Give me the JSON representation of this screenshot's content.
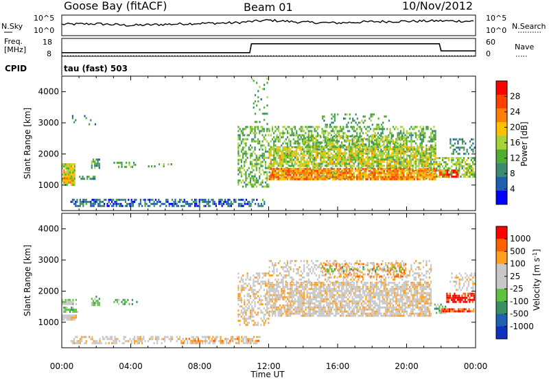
{
  "header": {
    "station": "Goose Bay (fitACF)",
    "beam": "Beam 01",
    "date": "10/Nov/2012"
  },
  "noise_panel": {
    "left_label": "N.Sky",
    "right_label": "N.Search",
    "left_ticks": [
      "10^5",
      "10^0"
    ],
    "right_ticks": [
      "10^5",
      "10^0"
    ]
  },
  "freq_panel": {
    "left_label_1": "Freq.",
    "left_label_2": "[MHz]",
    "right_label": "Nave",
    "left_ticks": [
      "18",
      "8"
    ],
    "right_ticks": [
      "60",
      "0"
    ]
  },
  "cpid": {
    "label": "CPID",
    "value": "tau (fast) 503"
  },
  "colors": {
    "power_scale": [
      "#0000ff",
      "#1e5fb0",
      "#3d8a72",
      "#4fae2f",
      "#a8d23a",
      "#ffc000",
      "#ff8000",
      "#ff4000",
      "#ff0000"
    ],
    "velocity_scale": [
      "#1030c0",
      "#2060b0",
      "#3a9060",
      "#60c040",
      "#c8c8c8",
      "#c8c8c8",
      "#ffa020",
      "#ff6000",
      "#ff0000"
    ],
    "ground_scatter": "#b4b4b4"
  },
  "chart_data": [
    {
      "type": "line",
      "title": "N.Sky / N.Search",
      "x": [
        0,
        2,
        4,
        6,
        8,
        10,
        11.5,
        12,
        14,
        16,
        18,
        20,
        22,
        24
      ],
      "series": [
        {
          "name": "N.Sky",
          "values": [
            0.55,
            0.58,
            0.5,
            0.55,
            0.6,
            0.62,
            0.72,
            0.75,
            0.65,
            0.62,
            0.68,
            0.7,
            0.72,
            0.7
          ]
        }
      ],
      "ylim": [
        0,
        1
      ]
    },
    {
      "type": "line",
      "title": "Freq / Nave",
      "x": [
        0,
        10.9,
        11.0,
        21.9,
        22.0,
        24
      ],
      "series": [
        {
          "name": "Freq.",
          "values": [
            10.0,
            10.0,
            15.0,
            15.0,
            11.0,
            11.0
          ]
        },
        {
          "name": "Nave",
          "values": [
            1.6,
            1.6,
            1.6,
            1.6,
            1.6,
            1.6
          ]
        }
      ],
      "ylim": [
        8,
        18
      ]
    },
    {
      "type": "heatmap",
      "title": "Power",
      "xlabel": "Time UT",
      "ylabel": "Slant Range [km]",
      "xlim": [
        0,
        24
      ],
      "ylim": [
        180,
        4500
      ],
      "yticks": [
        "1000",
        "2000",
        "3000",
        "4000"
      ],
      "colorbar": {
        "label": "Power [dB]",
        "ticks": [
          "4",
          "8",
          "12",
          "16",
          "20",
          "24",
          "28"
        ],
        "range": [
          0,
          30
        ]
      },
      "regions": [
        {
          "x": [
            0.0,
            0.8
          ],
          "y": [
            1000,
            1700
          ],
          "value": 16,
          "density": 0.85
        },
        {
          "x": [
            0.1,
            0.6
          ],
          "y": [
            1050,
            1250
          ],
          "value": 22,
          "density": 0.85
        },
        {
          "x": [
            1.0,
            2.0
          ],
          "y": [
            1150,
            1300
          ],
          "value": 8,
          "density": 0.6
        },
        {
          "x": [
            1.7,
            2.2
          ],
          "y": [
            1550,
            1850
          ],
          "value": 10,
          "density": 0.6
        },
        {
          "x": [
            3.0,
            4.4
          ],
          "y": [
            1550,
            1750
          ],
          "value": 10,
          "density": 0.35
        },
        {
          "x": [
            5.0,
            6.7
          ],
          "y": [
            1550,
            1700
          ],
          "value": 10,
          "density": 0.3
        },
        {
          "x": [
            0.5,
            11.8
          ],
          "y": [
            300,
            560
          ],
          "value": 6,
          "density": 0.55
        },
        {
          "x": [
            0.5,
            2.0
          ],
          "y": [
            2900,
            3250
          ],
          "value": 8,
          "density": 0.15
        },
        {
          "x": [
            10.2,
            12.0
          ],
          "y": [
            900,
            2900
          ],
          "value": 12,
          "density": 0.45
        },
        {
          "x": [
            11.0,
            12.0
          ],
          "y": [
            2900,
            4450
          ],
          "value": 10,
          "density": 0.12
        },
        {
          "x": [
            12.0,
            21.7
          ],
          "y": [
            1150,
            2900
          ],
          "value": 12,
          "density": 0.45
        },
        {
          "x": [
            12.0,
            21.7
          ],
          "y": [
            1600,
            2250
          ],
          "value": 16,
          "density": 0.65
        },
        {
          "x": [
            12.0,
            21.7
          ],
          "y": [
            1150,
            1550
          ],
          "value": 21,
          "density": 0.85
        },
        {
          "x": [
            14.0,
            20.0
          ],
          "y": [
            2200,
            2600
          ],
          "value": 14,
          "density": 0.5
        },
        {
          "x": [
            15.0,
            19.0
          ],
          "y": [
            2900,
            3300
          ],
          "value": 10,
          "density": 0.2
        },
        {
          "x": [
            21.7,
            24.0
          ],
          "y": [
            1250,
            1900
          ],
          "value": 14,
          "density": 0.6
        },
        {
          "x": [
            21.8,
            23.0
          ],
          "y": [
            1250,
            1500
          ],
          "value": 26,
          "density": 0.7
        },
        {
          "x": [
            22.5,
            24.0
          ],
          "y": [
            2000,
            2500
          ],
          "value": 8,
          "density": 0.35
        }
      ]
    },
    {
      "type": "heatmap",
      "title": "Velocity",
      "xlabel": "Time UT",
      "ylabel": "Slant Range [km]",
      "xlim": [
        0,
        24
      ],
      "ylim": [
        180,
        4500
      ],
      "yticks": [
        "1000",
        "2000",
        "3000",
        "4000"
      ],
      "xticks": [
        "00:00",
        "04:00",
        "08:00",
        "12:00",
        "16:00",
        "20:00",
        "00:00"
      ],
      "colorbar": {
        "label": "Velocity [m s^-1]",
        "ticks": [
          "1000",
          "500",
          "100",
          "25",
          "-25",
          "-100",
          "-500",
          "-1000"
        ]
      },
      "regions": [
        {
          "x": [
            0.0,
            0.9
          ],
          "y": [
            1550,
            1750
          ],
          "value": 4,
          "density": 0.8
        },
        {
          "x": [
            0.0,
            0.9
          ],
          "y": [
            1050,
            1250
          ],
          "value": 5,
          "density": 0.85
        },
        {
          "x": [
            0.0,
            1.0
          ],
          "y": [
            1300,
            1500
          ],
          "value": 3,
          "density": 0.6
        },
        {
          "x": [
            1.7,
            2.2
          ],
          "y": [
            1550,
            1850
          ],
          "value": 3,
          "density": 0.6
        },
        {
          "x": [
            3.0,
            4.4
          ],
          "y": [
            1550,
            1750
          ],
          "value": 3,
          "density": 0.35
        },
        {
          "x": [
            0.5,
            11.5
          ],
          "y": [
            300,
            560
          ],
          "value": 5,
          "density": 0.45
        },
        {
          "x": [
            7.0,
            11.5
          ],
          "y": [
            320,
            500
          ],
          "value": 6,
          "density": 0.4
        },
        {
          "x": [
            10.2,
            12.0
          ],
          "y": [
            900,
            2600
          ],
          "value": 5,
          "density": 0.45
        },
        {
          "x": [
            12.0,
            21.5
          ],
          "y": [
            1150,
            2300
          ],
          "value": 5,
          "density": 0.75
        },
        {
          "x": [
            12.0,
            21.5
          ],
          "y": [
            2300,
            3000
          ],
          "value": 5,
          "density": 0.3
        },
        {
          "x": [
            15.0,
            20.0
          ],
          "y": [
            2450,
            2900
          ],
          "value": 6,
          "density": 0.35
        },
        {
          "x": [
            15.0,
            20.0
          ],
          "y": [
            2600,
            2800
          ],
          "value": 3,
          "density": 0.2
        },
        {
          "x": [
            21.6,
            22.3
          ],
          "y": [
            1300,
            1600
          ],
          "value": 3,
          "density": 0.55
        },
        {
          "x": [
            22.0,
            24.0
          ],
          "y": [
            1300,
            1450
          ],
          "value": 7,
          "density": 0.8
        },
        {
          "x": [
            22.3,
            24.0
          ],
          "y": [
            1600,
            1950
          ],
          "value": 8,
          "density": 0.7
        },
        {
          "x": [
            22.5,
            24.0
          ],
          "y": [
            2000,
            2600
          ],
          "value": 5,
          "density": 0.35
        }
      ]
    }
  ]
}
